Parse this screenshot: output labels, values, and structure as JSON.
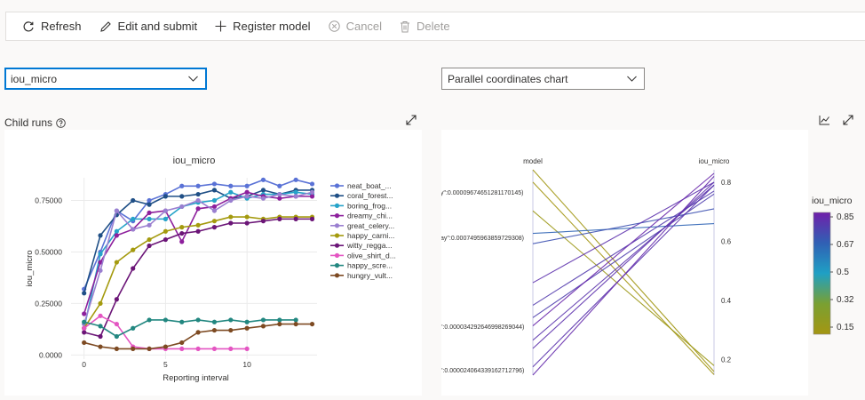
{
  "toolbar": {
    "refresh": "Refresh",
    "edit_submit": "Edit and submit",
    "register_model": "Register model",
    "cancel": "Cancel",
    "delete": "Delete"
  },
  "metric_dropdown": {
    "value": "iou_micro"
  },
  "chart_type_dropdown": {
    "value": "Parallel coordinates chart"
  },
  "section": {
    "label": "Child runs"
  },
  "colors": {
    "accent": "#0078d4",
    "toolbar_disabled": "#a19f9d"
  },
  "icons": [
    "refresh-icon",
    "edit-icon",
    "add-icon",
    "cancel-icon",
    "delete-icon",
    "chevron-down-icon",
    "help-icon",
    "expand-icon",
    "line-chart-icon"
  ],
  "chart_data": [
    {
      "type": "line",
      "title": "iou_micro",
      "xlabel": "Reporting interval",
      "ylabel": "iou_micro",
      "xlim": [
        -0.8,
        14.3
      ],
      "ylim": [
        -0.02,
        0.86
      ],
      "xticks": [
        0,
        5,
        10
      ],
      "yticks": [
        0.0,
        0.25,
        0.5,
        0.75
      ],
      "ytick_labels": [
        "0.0000",
        "0.25000",
        "0.50000",
        "0.75000"
      ],
      "legend_position": "right",
      "series": [
        {
          "name": "neat_boat_...",
          "color": "#5a72d6",
          "x": [
            0,
            1,
            2,
            3,
            4,
            5,
            6,
            7,
            8,
            9,
            10,
            11,
            12,
            13,
            14
          ],
          "values": [
            0.32,
            0.5,
            0.7,
            0.65,
            0.75,
            0.78,
            0.82,
            0.82,
            0.83,
            0.82,
            0.82,
            0.85,
            0.82,
            0.85,
            0.83
          ]
        },
        {
          "name": "coral_forest...",
          "color": "#1f4f86",
          "x": [
            0,
            1,
            2,
            3,
            4,
            5,
            6,
            7,
            8,
            9,
            10,
            11,
            12,
            13,
            14
          ],
          "values": [
            0.3,
            0.58,
            0.68,
            0.75,
            0.73,
            0.77,
            0.77,
            0.78,
            0.8,
            0.76,
            0.77,
            0.8,
            0.78,
            0.8,
            0.8
          ]
        },
        {
          "name": "boring_frog...",
          "color": "#26a3c9",
          "x": [
            0,
            1,
            2,
            3,
            4,
            5,
            6,
            7,
            8,
            9,
            10,
            11,
            12,
            13,
            14
          ],
          "values": [
            0.13,
            0.49,
            0.6,
            0.66,
            0.66,
            0.66,
            0.72,
            0.74,
            0.75,
            0.79,
            0.76,
            0.78,
            0.78,
            0.79,
            0.78
          ]
        },
        {
          "name": "dreamy_chi...",
          "color": "#8d1f9c",
          "x": [
            0,
            1,
            2,
            3,
            4,
            5,
            6,
            7,
            8,
            9,
            10,
            11,
            12,
            13,
            14
          ],
          "values": [
            0.2,
            0.45,
            0.58,
            0.61,
            0.69,
            0.7,
            0.55,
            0.71,
            0.72,
            0.76,
            0.79,
            0.77,
            0.76,
            0.77,
            0.77
          ]
        },
        {
          "name": "great_celery...",
          "color": "#9a7fd0",
          "x": [
            0,
            1,
            2,
            3,
            4,
            5,
            6,
            7,
            8,
            9,
            10,
            11,
            12,
            13,
            14
          ],
          "values": [
            0.15,
            0.41,
            0.7,
            0.61,
            0.63,
            0.7,
            0.72,
            0.75,
            0.7,
            0.75,
            0.77,
            0.76,
            0.78,
            0.77,
            0.79
          ]
        },
        {
          "name": "happy_carni...",
          "color": "#a49a0e",
          "x": [
            0,
            1,
            2,
            3,
            4,
            5,
            6,
            7,
            8,
            9,
            10,
            11,
            12,
            13,
            14
          ],
          "values": [
            0.13,
            0.25,
            0.45,
            0.51,
            0.56,
            0.6,
            0.62,
            0.63,
            0.65,
            0.67,
            0.67,
            0.66,
            0.67,
            0.67,
            0.67
          ]
        },
        {
          "name": "witty_regga...",
          "color": "#6b1577",
          "x": [
            0,
            1,
            2,
            3,
            4,
            5,
            6,
            7,
            8,
            9,
            10,
            11,
            12,
            13,
            14
          ],
          "values": [
            0.11,
            0.09,
            0.27,
            0.42,
            0.53,
            0.56,
            0.59,
            0.6,
            0.62,
            0.64,
            0.64,
            0.65,
            0.66,
            0.66,
            0.66
          ]
        },
        {
          "name": "olive_shirt_d...",
          "color": "#e455c2",
          "x": [
            0,
            1,
            2,
            3,
            4,
            5,
            6,
            7,
            8,
            9,
            10
          ],
          "values": [
            0.13,
            0.19,
            0.15,
            0.04,
            0.03,
            0.03,
            0.03,
            0.03,
            0.03,
            0.03,
            0.03
          ]
        },
        {
          "name": "happy_scre...",
          "color": "#228780",
          "x": [
            0,
            1,
            2,
            3,
            4,
            5,
            6,
            7,
            8,
            9,
            10,
            11,
            12,
            13
          ],
          "values": [
            0.16,
            0.14,
            0.09,
            0.13,
            0.17,
            0.17,
            0.16,
            0.17,
            0.16,
            0.17,
            0.16,
            0.17,
            0.17,
            0.17
          ]
        },
        {
          "name": "hungry_vult...",
          "color": "#7d4a22",
          "x": [
            0,
            1,
            2,
            3,
            4,
            5,
            6,
            7,
            8,
            9,
            10,
            11,
            12,
            13,
            14
          ],
          "values": [
            0.06,
            0.04,
            0.03,
            0.03,
            0.03,
            0.04,
            0.06,
            0.11,
            0.12,
            0.12,
            0.13,
            0.14,
            0.15,
            0.15,
            0.15
          ]
        }
      ]
    },
    {
      "type": "parallel_coordinates",
      "axes": [
        {
          "name": "model",
          "tick_labels": [
            "y\":0.0000967465128117014​5)",
            "ay\":0.000749596385972930​8)",
            "\":0.000034292646998269044)",
            "\":0.00002406433916271279​6)"
          ]
        },
        {
          "name": "iou_micro",
          "ticks": [
            0.2,
            0.4,
            0.6,
            0.8
          ],
          "range": [
            0.16,
            0.83
          ]
        }
      ],
      "colorbar": {
        "title": "iou_micro",
        "ticks": [
          "0.85",
          "0.67",
          "0.5",
          "0.32",
          "0.15"
        ]
      },
      "lines": [
        {
          "model_frac": 0.0,
          "iou_micro": 0.16
        },
        {
          "model_frac": 0.06,
          "iou_micro": 0.15
        },
        {
          "model_frac": 0.2,
          "iou_micro": 0.18
        },
        {
          "model_frac": 0.31,
          "iou_micro": 0.66
        },
        {
          "model_frac": 0.36,
          "iou_micro": 0.71
        },
        {
          "model_frac": 0.55,
          "iou_micro": 0.8
        },
        {
          "model_frac": 0.66,
          "iou_micro": 0.77
        },
        {
          "model_frac": 0.72,
          "iou_micro": 0.76
        },
        {
          "model_frac": 0.76,
          "iou_micro": 0.83
        },
        {
          "model_frac": 0.83,
          "iou_micro": 0.79
        },
        {
          "model_frac": 0.87,
          "iou_micro": 0.8
        },
        {
          "model_frac": 0.96,
          "iou_micro": 0.79
        },
        {
          "model_frac": 1.0,
          "iou_micro": 0.82
        }
      ]
    }
  ]
}
